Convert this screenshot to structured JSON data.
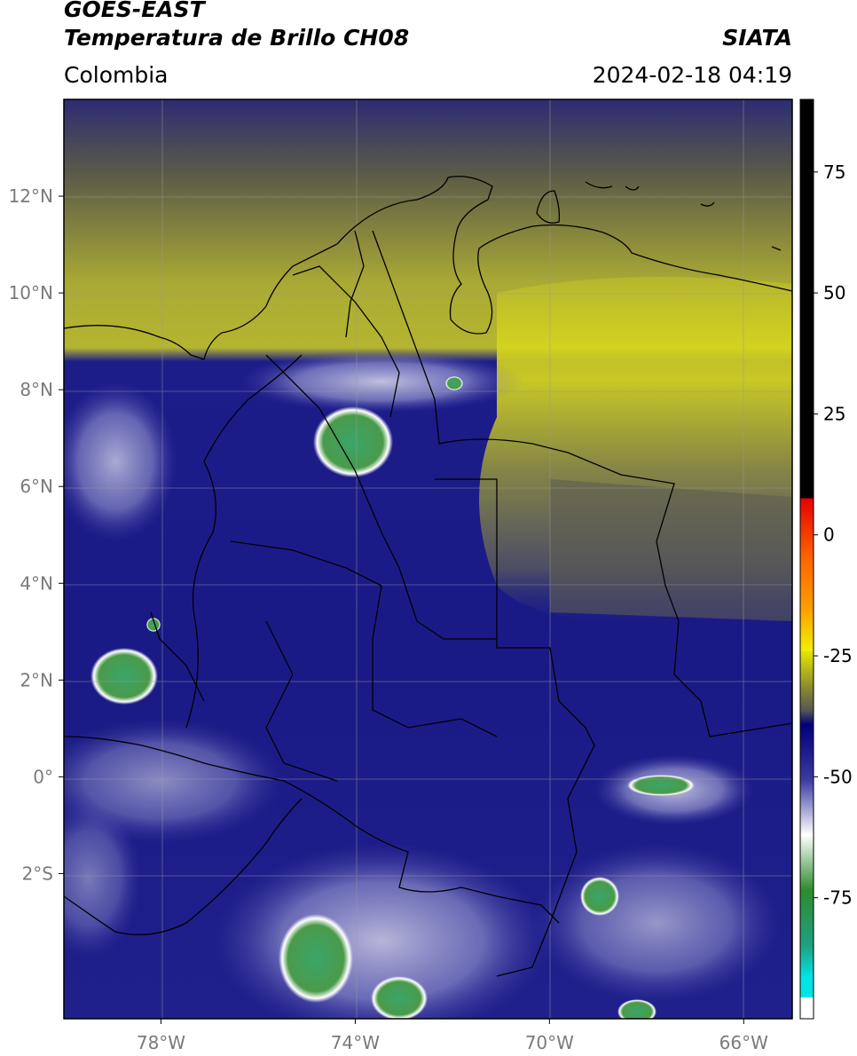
{
  "header": {
    "title_line1": "GOES-EAST",
    "title_line2": "Temperatura de Brillo CH08",
    "organization": "SIATA",
    "region": "Colombia",
    "datetime": "2024-02-18 04:19"
  },
  "map": {
    "lon_range": [
      -80,
      -65
    ],
    "lat_range": [
      -5,
      14
    ],
    "lon_ticks": [
      {
        "value": -78,
        "label": "78°W"
      },
      {
        "value": -74,
        "label": "74°W"
      },
      {
        "value": -70,
        "label": "70°W"
      },
      {
        "value": -66,
        "label": "66°W"
      }
    ],
    "lat_ticks": [
      {
        "value": 12,
        "label": "12°N"
      },
      {
        "value": 10,
        "label": "10°N"
      },
      {
        "value": 8,
        "label": "8°N"
      },
      {
        "value": 6,
        "label": "6°N"
      },
      {
        "value": 4,
        "label": "4°N"
      },
      {
        "value": 2,
        "label": "2°N"
      },
      {
        "value": 0,
        "label": "0°"
      },
      {
        "value": -2,
        "label": "2°S"
      }
    ],
    "gridlines": true
  },
  "colorbar": {
    "range": [
      -100,
      90
    ],
    "ticks": [
      {
        "value": 75,
        "label": "75"
      },
      {
        "value": 50,
        "label": "50"
      },
      {
        "value": 25,
        "label": "25"
      },
      {
        "value": 0,
        "label": "0"
      },
      {
        "value": -25,
        "label": "-25"
      },
      {
        "value": -50,
        "label": "-50"
      },
      {
        "value": -75,
        "label": "-75"
      }
    ],
    "colors": {
      "black": "#000000",
      "red": "#e60000",
      "orange": "#ff9900",
      "yellow": "#f0f000",
      "olive": "#8a8a30",
      "gray": "#555555",
      "navy": "#00007a",
      "blue": "#4a4aa8",
      "white": "#ffffff",
      "green": "#2e8b2e",
      "cyan": "#00e5e5"
    }
  }
}
